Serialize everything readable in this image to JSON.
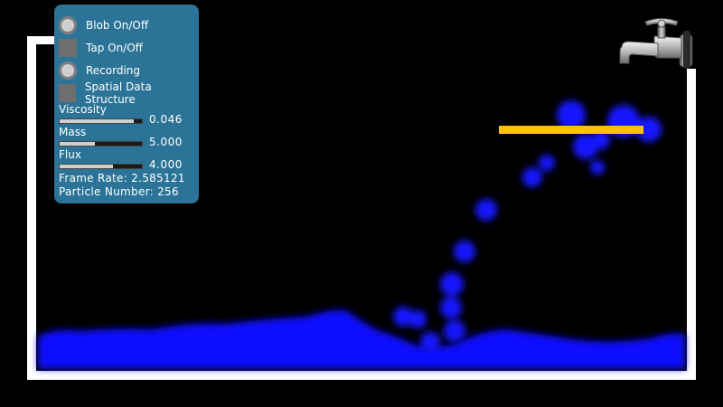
{
  "panel": {
    "toggles": [
      {
        "label": "Blob On/Off",
        "control": "radio"
      },
      {
        "label": "Tap On/Off",
        "control": "check"
      },
      {
        "label": "Recording",
        "control": "radio"
      },
      {
        "label": "Spatial Data Structure",
        "control": "check"
      }
    ],
    "sliders": [
      {
        "label": "Viscosity",
        "value": "0.046",
        "fill_fraction": 0.9
      },
      {
        "label": "Mass",
        "value": "5.000",
        "fill_fraction": 0.43
      },
      {
        "label": "Flux",
        "value": "4.000",
        "fill_fraction": 0.65
      }
    ],
    "frame_rate": "Frame Rate: 2.585121",
    "particle_number": "Particle Number: 256"
  },
  "colors": {
    "panel": "#2b7497",
    "water": "#1010ff",
    "barrier": "#ffc000",
    "container": "#ffffff",
    "background": "#000000"
  },
  "icons": {
    "tap": "faucet-icon"
  }
}
